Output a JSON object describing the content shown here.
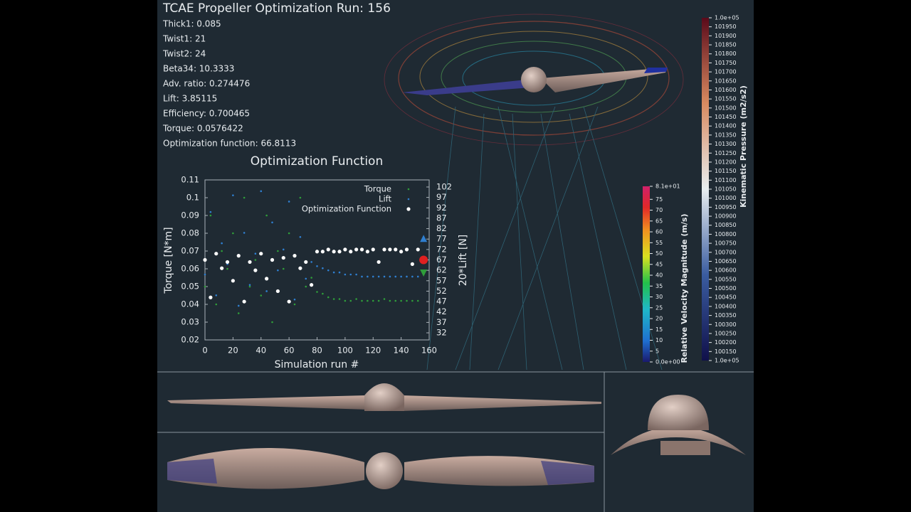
{
  "header": {
    "title": "TCAE Propeller Optimization Run: 156",
    "params": [
      "Thick1: 0.085",
      "Twist1: 21",
      "Twist2: 24",
      "Beta34: 10.3333",
      "Adv. ratio: 0.274476",
      "Lift: 3.85115",
      "Efficiency: 0.700465",
      "Torque: 0.0576422",
      "Optimization function: 66.8113"
    ]
  },
  "chart_data": {
    "type": "scatter",
    "title": "Optimization Function",
    "x_label": "Simulation run #",
    "y_label": "Torque [N*m]",
    "y2_label": "20*Lift [N]",
    "xlim": [
      0,
      160
    ],
    "xticks": [
      0,
      20,
      40,
      60,
      80,
      100,
      120,
      140,
      160
    ],
    "ylim": [
      0.02,
      0.11
    ],
    "yticks": [
      0.02,
      0.03,
      0.04,
      0.05,
      0.06,
      0.07,
      0.08,
      0.09,
      0.1,
      0.11
    ],
    "y2lim": [
      28.6,
      105.4
    ],
    "y2ticks": [
      32,
      37,
      42,
      47,
      52,
      57,
      62,
      67,
      72,
      77,
      82,
      87,
      92,
      97,
      102
    ],
    "legend": "top-right",
    "x": [
      0,
      4,
      8,
      12,
      16,
      20,
      24,
      28,
      32,
      36,
      40,
      44,
      48,
      52,
      56,
      60,
      64,
      68,
      72,
      76,
      80,
      84,
      88,
      92,
      96,
      100,
      104,
      108,
      112,
      116,
      120,
      124,
      128,
      132,
      136,
      140,
      144,
      148,
      152,
      156
    ],
    "series": [
      {
        "name": "Torque",
        "color": "#2f9e3a",
        "values": [
          0.05,
          0.09,
          0.04,
          0.07,
          0.06,
          0.08,
          0.035,
          0.1,
          0.05,
          0.065,
          0.045,
          0.09,
          0.03,
          0.07,
          0.06,
          0.08,
          0.04,
          0.1,
          0.05,
          0.055,
          0.047,
          0.046,
          0.044,
          0.043,
          0.043,
          0.042,
          0.042,
          0.043,
          0.042,
          0.042,
          0.042,
          0.042,
          0.043,
          0.042,
          0.042,
          0.042,
          0.042,
          0.042,
          0.042,
          0.058
        ]
      },
      {
        "name": "Lift",
        "color": "#2f7fd0",
        "axis": "y2",
        "values": [
          60,
          90,
          50,
          75,
          65,
          98,
          45,
          80,
          55,
          70,
          100,
          52,
          85,
          62,
          72,
          95,
          48,
          78,
          58,
          66,
          64,
          63,
          62,
          61,
          61,
          60,
          60,
          60,
          59,
          59,
          59,
          59,
          59,
          59,
          59,
          59,
          59,
          59,
          59,
          77
        ]
      },
      {
        "name": "Optimization Function",
        "color": "#ffffff",
        "axis": "y2",
        "values": [
          67,
          49,
          70,
          63,
          66,
          57,
          69,
          47,
          66,
          62,
          70,
          58,
          67,
          52,
          68,
          47,
          69,
          63,
          66,
          55,
          71,
          71,
          72,
          71,
          71,
          72,
          71,
          72,
          72,
          71,
          72,
          66,
          72,
          72,
          72,
          71,
          72,
          65,
          72,
          67
        ]
      }
    ]
  },
  "colorbars": [
    {
      "title": "Relative Velocity  Magnitude (m/s)",
      "range": [
        {
          "value": 0,
          "label": "0.0e+00"
        },
        {
          "value": 81,
          "label": "8.1e+01"
        }
      ],
      "ticks": [
        5,
        10,
        15,
        20,
        25,
        30,
        35,
        40,
        45,
        50,
        55,
        60,
        65,
        70,
        75
      ]
    },
    {
      "title": "Kinematic Pressure (m2/s2)",
      "range": [
        {
          "value": 100100,
          "label": "1.0e+05"
        },
        {
          "value": 102000,
          "label": "1.0e+05"
        }
      ],
      "ticks": [
        100150,
        100200,
        100250,
        100300,
        100350,
        100400,
        100450,
        100500,
        100550,
        100600,
        100650,
        100700,
        100750,
        100800,
        100850,
        100900,
        100950,
        101000,
        101050,
        101100,
        101150,
        101200,
        101250,
        101300,
        101350,
        101400,
        101450,
        101500,
        101550,
        101600,
        101650,
        101700,
        101750,
        101800,
        101850,
        101900,
        101950
      ]
    }
  ]
}
